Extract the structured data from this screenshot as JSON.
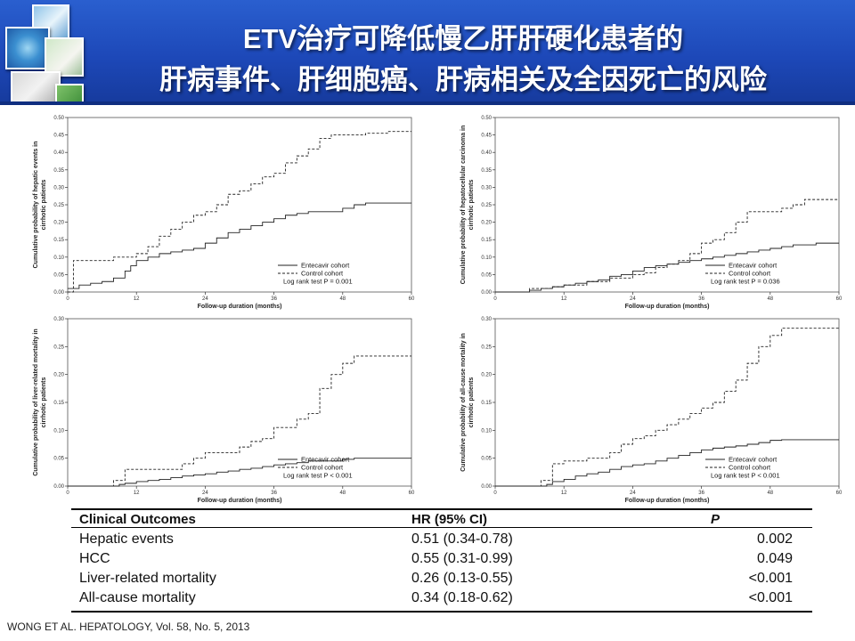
{
  "header": {
    "title_line1": "ETV治疗可降低慢乙肝肝硬化患者的",
    "title_line2": "肝病事件、肝细胞癌、肝病相关及全因死亡的风险",
    "gradient_colors": [
      "#2a5fcf",
      "#163a9c"
    ]
  },
  "chart_data": [
    {
      "type": "line",
      "ylabel": "Cumulative probability of hepatic events in cirrhotic patients",
      "xlabel": "Follow-up duration (months)",
      "xticks": [
        0,
        12,
        24,
        36,
        48,
        60
      ],
      "yticks": [
        "0.00",
        "0.05",
        "0.10",
        "0.15",
        "0.20",
        "0.25",
        "0.30",
        "0.35",
        "0.40",
        "0.45",
        "0.50"
      ],
      "xlim": [
        0,
        60
      ],
      "ylim": [
        0,
        0.5
      ],
      "legend_position": "bottom-right",
      "legend": [
        "Entecavir cohort",
        "Control cohort"
      ],
      "logrank": "Log rank test P = 0.001",
      "series": [
        {
          "name": "Entecavir cohort",
          "style": "solid",
          "x": [
            0,
            2,
            4,
            6,
            8,
            10,
            11,
            12,
            14,
            16,
            18,
            20,
            22,
            24,
            26,
            28,
            30,
            32,
            34,
            36,
            38,
            40,
            42,
            44,
            46,
            48,
            50,
            52,
            54,
            56,
            58,
            60
          ],
          "y": [
            0.01,
            0.02,
            0.025,
            0.03,
            0.04,
            0.06,
            0.075,
            0.09,
            0.1,
            0.11,
            0.115,
            0.12,
            0.125,
            0.14,
            0.155,
            0.17,
            0.18,
            0.19,
            0.2,
            0.21,
            0.22,
            0.225,
            0.23,
            0.23,
            0.23,
            0.24,
            0.25,
            0.255,
            0.255,
            0.255,
            0.255,
            0.255
          ]
        },
        {
          "name": "Control cohort",
          "style": "dashed",
          "x": [
            0,
            1,
            2,
            4,
            6,
            8,
            10,
            12,
            14,
            16,
            18,
            20,
            22,
            24,
            26,
            28,
            30,
            32,
            34,
            36,
            38,
            40,
            42,
            44,
            46,
            48,
            50,
            52,
            54,
            56,
            58,
            60
          ],
          "y": [
            0.0,
            0.09,
            0.09,
            0.09,
            0.09,
            0.1,
            0.1,
            0.11,
            0.13,
            0.16,
            0.18,
            0.2,
            0.22,
            0.23,
            0.25,
            0.28,
            0.29,
            0.31,
            0.33,
            0.34,
            0.37,
            0.39,
            0.41,
            0.44,
            0.45,
            0.45,
            0.45,
            0.455,
            0.455,
            0.46,
            0.46,
            0.46
          ]
        }
      ]
    },
    {
      "type": "line",
      "ylabel": "Cumulative probability of hepatocellular carcinoma in cirrhotic patients",
      "xlabel": "Follow-up duration (months)",
      "xticks": [
        0,
        12,
        24,
        36,
        48,
        60
      ],
      "yticks": [
        "0.00",
        "0.05",
        "0.10",
        "0.15",
        "0.20",
        "0.25",
        "0.30",
        "0.35",
        "0.40",
        "0.45",
        "0.50"
      ],
      "xlim": [
        0,
        60
      ],
      "ylim": [
        0,
        0.5
      ],
      "legend_position": "bottom-right",
      "legend": [
        "Entecavir cohort",
        "Control cohort"
      ],
      "logrank": "Log rank test P = 0.036",
      "series": [
        {
          "name": "Entecavir cohort",
          "style": "solid",
          "x": [
            0,
            4,
            6,
            8,
            10,
            12,
            14,
            16,
            18,
            20,
            22,
            24,
            26,
            28,
            30,
            32,
            34,
            36,
            38,
            40,
            42,
            44,
            46,
            48,
            50,
            52,
            54,
            56,
            58,
            60
          ],
          "y": [
            0.0,
            0.0,
            0.005,
            0.01,
            0.015,
            0.02,
            0.025,
            0.03,
            0.035,
            0.045,
            0.05,
            0.06,
            0.07,
            0.075,
            0.08,
            0.085,
            0.09,
            0.095,
            0.1,
            0.105,
            0.11,
            0.115,
            0.12,
            0.125,
            0.13,
            0.135,
            0.135,
            0.14,
            0.14,
            0.14
          ]
        },
        {
          "name": "Control cohort",
          "style": "dashed",
          "x": [
            0,
            6,
            10,
            12,
            16,
            20,
            24,
            26,
            28,
            30,
            32,
            34,
            36,
            38,
            40,
            42,
            44,
            46,
            48,
            50,
            52,
            54,
            56,
            58,
            60
          ],
          "y": [
            0.0,
            0.01,
            0.015,
            0.02,
            0.03,
            0.04,
            0.05,
            0.055,
            0.07,
            0.08,
            0.09,
            0.11,
            0.14,
            0.15,
            0.17,
            0.2,
            0.23,
            0.23,
            0.23,
            0.24,
            0.25,
            0.265,
            0.265,
            0.265,
            0.265
          ]
        }
      ]
    },
    {
      "type": "line",
      "ylabel": "Cumulative probability of liver-related mortality in cirrhotic patients",
      "xlabel": "Follow-up duration (months)",
      "xticks": [
        0,
        12,
        24,
        36,
        48,
        60
      ],
      "yticks": [
        "0.00",
        "0.05",
        "0.10",
        "0.15",
        "0.20",
        "0.25",
        "0.30"
      ],
      "xlim": [
        0,
        60
      ],
      "ylim": [
        0,
        0.3
      ],
      "legend_position": "bottom-right",
      "legend": [
        "Entecavir cohort",
        "Control cohort"
      ],
      "logrank": "Log rank test P < 0.001",
      "series": [
        {
          "name": "Entecavir cohort",
          "style": "solid",
          "x": [
            0,
            6,
            9,
            10,
            12,
            14,
            16,
            18,
            20,
            22,
            24,
            26,
            28,
            30,
            32,
            34,
            36,
            38,
            40,
            42,
            44,
            46,
            48,
            50,
            52,
            54,
            56,
            58,
            60
          ],
          "y": [
            0.0,
            0.0,
            0.003,
            0.005,
            0.008,
            0.01,
            0.012,
            0.015,
            0.018,
            0.02,
            0.022,
            0.025,
            0.027,
            0.03,
            0.032,
            0.035,
            0.038,
            0.04,
            0.042,
            0.045,
            0.045,
            0.045,
            0.048,
            0.05,
            0.05,
            0.05,
            0.05,
            0.05,
            0.05
          ]
        },
        {
          "name": "Control cohort",
          "style": "dashed",
          "x": [
            0,
            8,
            10,
            12,
            16,
            20,
            22,
            24,
            26,
            30,
            32,
            34,
            36,
            38,
            40,
            42,
            44,
            46,
            48,
            50,
            54,
            58,
            60
          ],
          "y": [
            0.0,
            0.01,
            0.03,
            0.03,
            0.03,
            0.04,
            0.05,
            0.06,
            0.06,
            0.07,
            0.08,
            0.085,
            0.105,
            0.105,
            0.12,
            0.13,
            0.175,
            0.2,
            0.22,
            0.233,
            0.233,
            0.233,
            0.233
          ]
        }
      ]
    },
    {
      "type": "line",
      "ylabel": "Cumulative probability of all-cause mortality in cirrhotic patients",
      "xlabel": "Follow-up duration (months)",
      "xticks": [
        0,
        12,
        24,
        36,
        48,
        60
      ],
      "yticks": [
        "0.00",
        "0.05",
        "0.10",
        "0.15",
        "0.20",
        "0.25",
        "0.30"
      ],
      "xlim": [
        0,
        60
      ],
      "ylim": [
        0,
        0.3
      ],
      "legend_position": "bottom-right",
      "legend": [
        "Entecavir cohort",
        "Control cohort"
      ],
      "logrank": "Log rank test P < 0.001",
      "series": [
        {
          "name": "Entecavir cohort",
          "style": "solid",
          "x": [
            0,
            6,
            9,
            10,
            12,
            14,
            16,
            18,
            20,
            22,
            24,
            26,
            28,
            30,
            32,
            34,
            36,
            38,
            40,
            42,
            44,
            46,
            48,
            50,
            52,
            54,
            56,
            58,
            60
          ],
          "y": [
            0.0,
            0.0,
            0.003,
            0.008,
            0.012,
            0.018,
            0.022,
            0.025,
            0.03,
            0.035,
            0.038,
            0.04,
            0.045,
            0.05,
            0.055,
            0.06,
            0.065,
            0.068,
            0.07,
            0.072,
            0.075,
            0.078,
            0.082,
            0.083,
            0.083,
            0.083,
            0.083,
            0.083,
            0.083
          ]
        },
        {
          "name": "Control cohort",
          "style": "dashed",
          "x": [
            0,
            8,
            10,
            12,
            16,
            20,
            22,
            24,
            26,
            28,
            30,
            32,
            34,
            36,
            38,
            40,
            42,
            44,
            46,
            48,
            50,
            54,
            58,
            60
          ],
          "y": [
            0.0,
            0.01,
            0.04,
            0.045,
            0.05,
            0.06,
            0.075,
            0.085,
            0.09,
            0.1,
            0.11,
            0.12,
            0.13,
            0.14,
            0.15,
            0.17,
            0.19,
            0.22,
            0.25,
            0.27,
            0.283,
            0.283,
            0.283,
            0.283
          ]
        }
      ]
    }
  ],
  "table": {
    "headers": [
      "Clinical Outcomes",
      "HR (95% CI)",
      "P"
    ],
    "rows": [
      {
        "outcome": "Hepatic events",
        "hr": "0.51 (0.34-0.78)",
        "p": "0.002"
      },
      {
        "outcome": "HCC",
        "hr": "0.55 (0.31-0.99)",
        "p": "0.049"
      },
      {
        "outcome": "Liver-related mortality",
        "hr": "0.26 (0.13-0.55)",
        "p": "<0.001"
      },
      {
        "outcome": "All-cause mortality",
        "hr": "0.34 (0.18-0.62)",
        "p": "<0.001"
      }
    ]
  },
  "citation": "WONG ET AL. HEPATOLOGY, Vol. 58, No. 5, 2013"
}
